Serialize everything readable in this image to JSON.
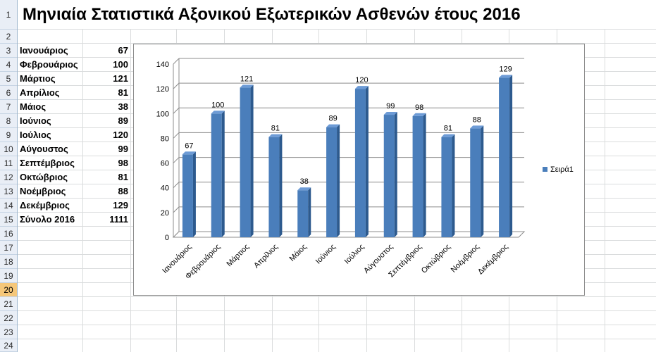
{
  "sheet": {
    "row_numbers": [
      "1",
      "2",
      "3",
      "4",
      "5",
      "6",
      "7",
      "8",
      "9",
      "10",
      "11",
      "12",
      "13",
      "14",
      "15",
      "16",
      "17",
      "18",
      "19",
      "20",
      "21",
      "22",
      "23",
      "24"
    ],
    "selected_row": "20",
    "title": "Μηνιαία Στατιστικά Αξονικού Εξωτερικών Ασθενών έτους 2016",
    "months": [
      {
        "name": "Ιανουάριος",
        "value": "67"
      },
      {
        "name": "Φεβρουάριος",
        "value": "100"
      },
      {
        "name": "Μάρτιος",
        "value": "121"
      },
      {
        "name": "Απρίλιος",
        "value": "81"
      },
      {
        "name": "Μάιος",
        "value": "38"
      },
      {
        "name": "Ιούνιος",
        "value": "89"
      },
      {
        "name": "Ιούλιος",
        "value": "120"
      },
      {
        "name": "Αύγουστος",
        "value": "99"
      },
      {
        "name": "Σεπτέμβριος",
        "value": "98"
      },
      {
        "name": "Οκτώβριος",
        "value": "81"
      },
      {
        "name": "Νοέμβριος",
        "value": "88"
      },
      {
        "name": "Δεκέμβριος",
        "value": "129"
      }
    ],
    "total": {
      "name": "Σύνολο 2016",
      "value": "1111"
    }
  },
  "chart_data": {
    "type": "bar",
    "title": "",
    "xlabel": "",
    "ylabel": "",
    "categories": [
      "Ιανουάριος",
      "Φεβρουάριος",
      "Μάρτιος",
      "Απρίλιος",
      "Μάιος",
      "Ιούνιος",
      "Ιούλιος",
      "Αύγουστος",
      "Σεπτέμβριος",
      "Οκτώβριος",
      "Νοέμβριος",
      "Δεκέμβριος"
    ],
    "series": [
      {
        "name": "Σειρά1",
        "values": [
          67,
          100,
          121,
          81,
          38,
          89,
          120,
          99,
          98,
          81,
          88,
          129
        ]
      }
    ],
    "ylim": [
      0,
      140
    ],
    "yticks": [
      0,
      20,
      40,
      60,
      80,
      100,
      120,
      140
    ],
    "grid": true,
    "legend": "right",
    "bar_color": "#4a7ebb",
    "bar_side_color": "#2d5a8e",
    "bar_top_color": "#6d9bd6"
  }
}
